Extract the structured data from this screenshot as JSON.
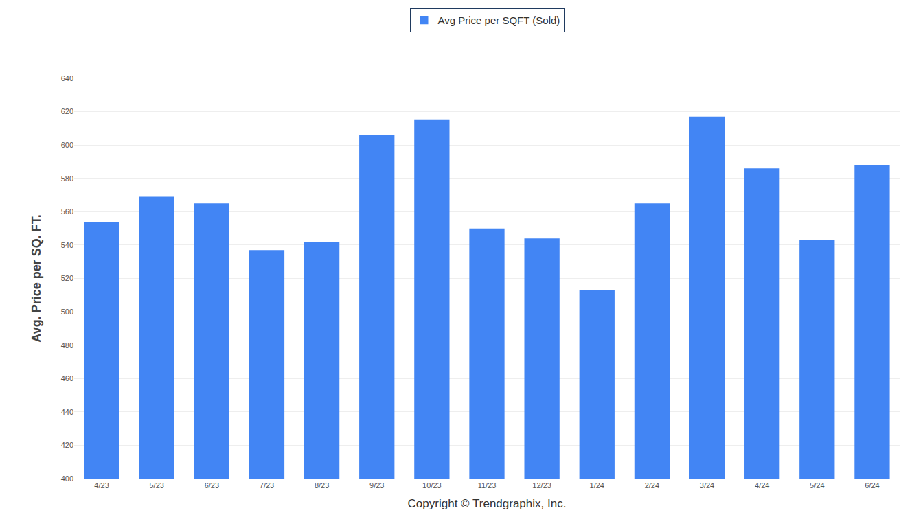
{
  "chart_data": {
    "type": "bar",
    "categories": [
      "4/23",
      "5/23",
      "6/23",
      "7/23",
      "8/23",
      "9/23",
      "10/23",
      "11/23",
      "12/23",
      "1/24",
      "2/24",
      "3/24",
      "4/24",
      "5/24",
      "6/24"
    ],
    "series": [
      {
        "name": "Avg Price per SQFT (Sold)",
        "color": "#4285f4",
        "values": [
          554,
          569,
          565,
          537,
          542,
          606,
          615,
          550,
          544,
          513,
          565,
          617,
          586,
          543,
          588
        ]
      }
    ],
    "x_label": "Copyright © Trendgraphix, Inc.",
    "y_label": "Avg. Price per SQ. FT.",
    "ylim": [
      400,
      640
    ],
    "yticks": [
      400,
      420,
      440,
      460,
      480,
      500,
      520,
      540,
      560,
      580,
      600,
      620,
      640
    ],
    "grid": true,
    "legend": "top"
  }
}
